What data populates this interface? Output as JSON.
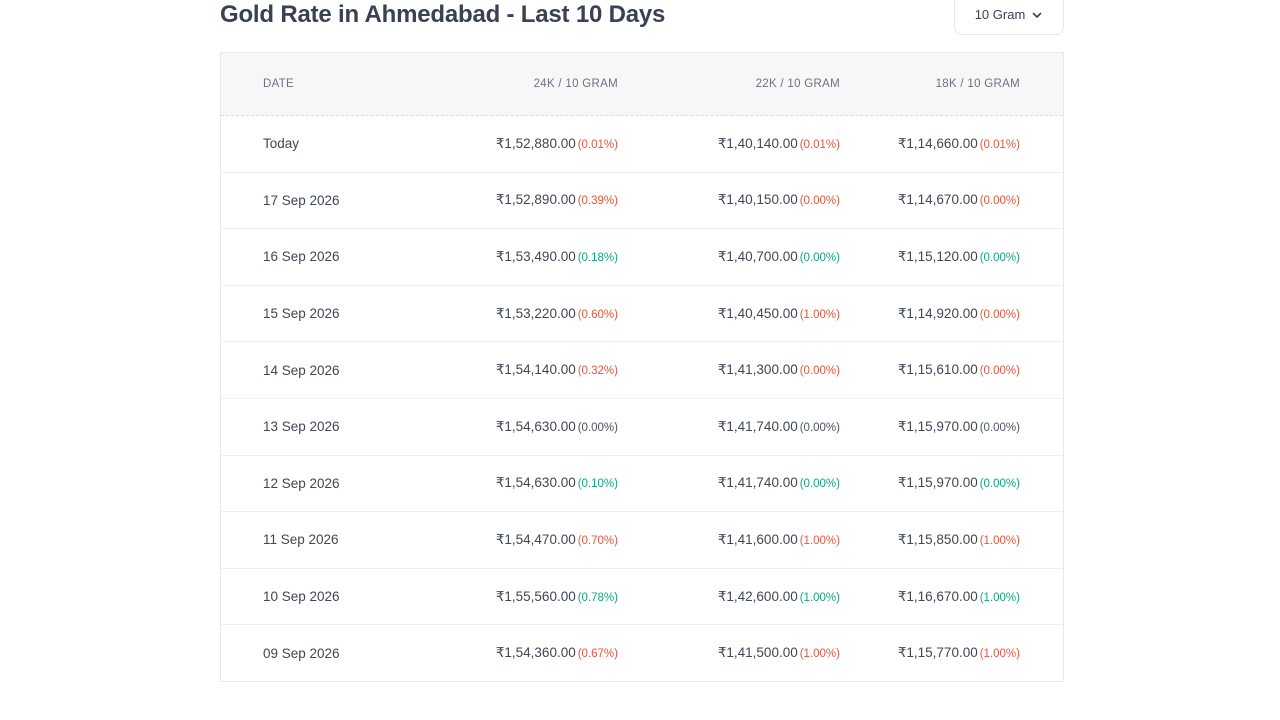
{
  "page": {
    "title": "Gold Rate in Ahmedabad - Last 10 Days"
  },
  "unit_selector": {
    "selected": "10 Gram",
    "icon": "chevron-down-icon"
  },
  "table": {
    "headers": {
      "date": "DATE",
      "k24": "24K / 10 GRAM",
      "k22": "22K / 10 GRAM",
      "k18": "18K / 10 GRAM"
    },
    "colors": {
      "down": "#e2583e",
      "up": "#14a37f",
      "flat": "#4b5563"
    },
    "rows": [
      {
        "date": "Today",
        "k24": {
          "price": "₹1,52,880.00",
          "change": "(0.01%)",
          "trend": "down"
        },
        "k22": {
          "price": "₹1,40,140.00",
          "change": "(0.01%)",
          "trend": "down"
        },
        "k18": {
          "price": "₹1,14,660.00",
          "change": "(0.01%)",
          "trend": "down"
        }
      },
      {
        "date": "17 Sep 2026",
        "k24": {
          "price": "₹1,52,890.00",
          "change": "(0.39%)",
          "trend": "down"
        },
        "k22": {
          "price": "₹1,40,150.00",
          "change": "(0.00%)",
          "trend": "down"
        },
        "k18": {
          "price": "₹1,14,670.00",
          "change": "(0.00%)",
          "trend": "down"
        }
      },
      {
        "date": "16 Sep 2026",
        "k24": {
          "price": "₹1,53,490.00",
          "change": "(0.18%)",
          "trend": "up"
        },
        "k22": {
          "price": "₹1,40,700.00",
          "change": "(0.00%)",
          "trend": "up"
        },
        "k18": {
          "price": "₹1,15,120.00",
          "change": "(0.00%)",
          "trend": "up"
        }
      },
      {
        "date": "15 Sep 2026",
        "k24": {
          "price": "₹1,53,220.00",
          "change": "(0.60%)",
          "trend": "down"
        },
        "k22": {
          "price": "₹1,40,450.00",
          "change": "(1.00%)",
          "trend": "down"
        },
        "k18": {
          "price": "₹1,14,920.00",
          "change": "(0.00%)",
          "trend": "down"
        }
      },
      {
        "date": "14 Sep 2026",
        "k24": {
          "price": "₹1,54,140.00",
          "change": "(0.32%)",
          "trend": "down"
        },
        "k22": {
          "price": "₹1,41,300.00",
          "change": "(0.00%)",
          "trend": "down"
        },
        "k18": {
          "price": "₹1,15,610.00",
          "change": "(0.00%)",
          "trend": "down"
        }
      },
      {
        "date": "13 Sep 2026",
        "k24": {
          "price": "₹1,54,630.00",
          "change": "(0.00%)",
          "trend": "flat"
        },
        "k22": {
          "price": "₹1,41,740.00",
          "change": "(0.00%)",
          "trend": "flat"
        },
        "k18": {
          "price": "₹1,15,970.00",
          "change": "(0.00%)",
          "trend": "flat"
        }
      },
      {
        "date": "12 Sep 2026",
        "k24": {
          "price": "₹1,54,630.00",
          "change": "(0.10%)",
          "trend": "up"
        },
        "k22": {
          "price": "₹1,41,740.00",
          "change": "(0.00%)",
          "trend": "up"
        },
        "k18": {
          "price": "₹1,15,970.00",
          "change": "(0.00%)",
          "trend": "up"
        }
      },
      {
        "date": "11 Sep 2026",
        "k24": {
          "price": "₹1,54,470.00",
          "change": "(0.70%)",
          "trend": "down"
        },
        "k22": {
          "price": "₹1,41,600.00",
          "change": "(1.00%)",
          "trend": "down"
        },
        "k18": {
          "price": "₹1,15,850.00",
          "change": "(1.00%)",
          "trend": "down"
        }
      },
      {
        "date": "10 Sep 2026",
        "k24": {
          "price": "₹1,55,560.00",
          "change": "(0.78%)",
          "trend": "up"
        },
        "k22": {
          "price": "₹1,42,600.00",
          "change": "(1.00%)",
          "trend": "up"
        },
        "k18": {
          "price": "₹1,16,670.00",
          "change": "(1.00%)",
          "trend": "up"
        }
      },
      {
        "date": "09 Sep 2026",
        "k24": {
          "price": "₹1,54,360.00",
          "change": "(0.67%)",
          "trend": "down"
        },
        "k22": {
          "price": "₹1,41,500.00",
          "change": "(1.00%)",
          "trend": "down"
        },
        "k18": {
          "price": "₹1,15,770.00",
          "change": "(1.00%)",
          "trend": "down"
        }
      }
    ]
  }
}
